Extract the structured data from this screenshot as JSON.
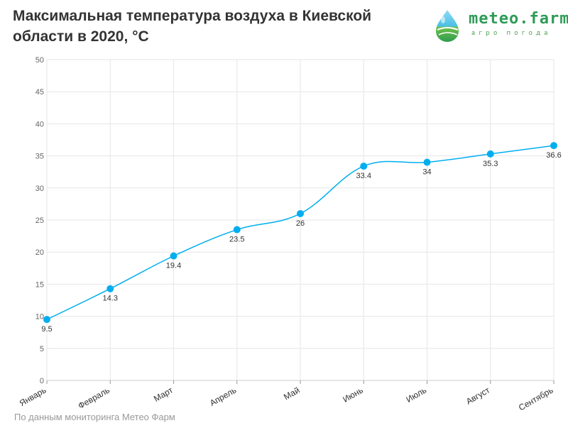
{
  "header": {
    "title": "Максимальная температура воздуха в Киевской\nобласти в 2020, °C"
  },
  "logo": {
    "name": "meteo.farm",
    "tagline": "агро погода",
    "colors": {
      "drop_top": "#7dd3f0",
      "drop_bottom": "#2e9c4f",
      "text": "#2f9b57"
    }
  },
  "footer": {
    "text": "По данным мониторинга Метео Фарм"
  },
  "colors": {
    "series": "#00aeef",
    "grid": "#e6e6e6",
    "axis": "#999999"
  },
  "chart_data": {
    "type": "line",
    "title": "Максимальная температура воздуха в Киевской области в 2020, °C",
    "xlabel": "",
    "ylabel": "",
    "categories": [
      "Январь",
      "Февраль",
      "Март",
      "Апрель",
      "Май",
      "Июнь",
      "Июль",
      "Август",
      "Сентябрь"
    ],
    "values": [
      9.5,
      14.3,
      19.4,
      23.5,
      26,
      33.4,
      34,
      35.3,
      36.6
    ],
    "data_labels": [
      "9.5",
      "14.3",
      "19.4",
      "23.5",
      "26",
      "33.4",
      "34",
      "35.3",
      "36.6"
    ],
    "ylim": [
      0,
      50
    ],
    "yticks": [
      "0",
      "5",
      "10",
      "15",
      "20",
      "25",
      "30",
      "35",
      "40",
      "45",
      "50"
    ],
    "grid": true,
    "legend": "none"
  }
}
